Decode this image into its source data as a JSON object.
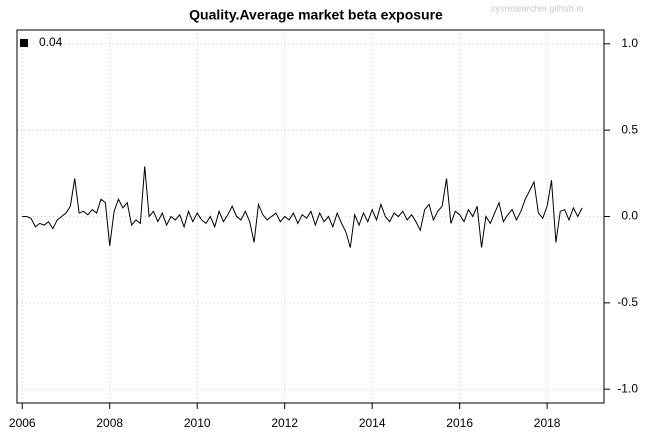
{
  "chart_data": {
    "type": "line",
    "title": "Quality.Average market beta exposure",
    "watermark": "sysresearcher.github.io",
    "x": [
      2006.0,
      2006.1,
      2006.2,
      2006.3,
      2006.4,
      2006.5,
      2006.6,
      2006.7,
      2006.8,
      2006.9,
      2007.0,
      2007.1,
      2007.2,
      2007.3,
      2007.4,
      2007.5,
      2007.6,
      2007.7,
      2007.8,
      2007.9,
      2008.0,
      2008.1,
      2008.2,
      2008.3,
      2008.4,
      2008.5,
      2008.6,
      2008.7,
      2008.8,
      2008.9,
      2009.0,
      2009.1,
      2009.2,
      2009.3,
      2009.4,
      2009.5,
      2009.6,
      2009.7,
      2009.8,
      2009.9,
      2010.0,
      2010.1,
      2010.2,
      2010.3,
      2010.4,
      2010.5,
      2010.6,
      2010.7,
      2010.8,
      2010.9,
      2011.0,
      2011.1,
      2011.2,
      2011.3,
      2011.4,
      2011.5,
      2011.6,
      2011.7,
      2011.8,
      2011.9,
      2012.0,
      2012.1,
      2012.2,
      2012.3,
      2012.4,
      2012.5,
      2012.6,
      2012.7,
      2012.8,
      2012.9,
      2013.0,
      2013.1,
      2013.2,
      2013.3,
      2013.4,
      2013.5,
      2013.6,
      2013.7,
      2013.8,
      2013.9,
      2014.0,
      2014.1,
      2014.2,
      2014.3,
      2014.4,
      2014.5,
      2014.6,
      2014.7,
      2014.8,
      2014.9,
      2015.0,
      2015.1,
      2015.2,
      2015.3,
      2015.4,
      2015.5,
      2015.6,
      2015.7,
      2015.8,
      2015.9,
      2016.0,
      2016.1,
      2016.2,
      2016.3,
      2016.4,
      2016.5,
      2016.6,
      2016.7,
      2016.8,
      2016.9,
      2017.0,
      2017.1,
      2017.2,
      2017.3,
      2017.4,
      2017.5,
      2017.6,
      2017.7,
      2017.8,
      2017.9,
      2018.0,
      2018.1,
      2018.2,
      2018.3,
      2018.4,
      2018.5,
      2018.6,
      2018.7,
      2018.8
    ],
    "series": [
      {
        "name": "0.04",
        "color": "#000000",
        "values": [
          0.0,
          0.0,
          -0.01,
          -0.06,
          -0.04,
          -0.05,
          -0.03,
          -0.07,
          -0.02,
          0.0,
          0.02,
          0.06,
          0.22,
          0.02,
          0.03,
          0.01,
          0.04,
          0.02,
          0.1,
          0.08,
          -0.17,
          0.03,
          0.1,
          0.05,
          0.08,
          -0.05,
          -0.02,
          -0.04,
          0.29,
          0.0,
          0.03,
          -0.03,
          0.02,
          -0.05,
          0.0,
          -0.02,
          0.01,
          -0.06,
          0.03,
          -0.03,
          0.02,
          -0.02,
          -0.04,
          0.0,
          -0.06,
          0.03,
          -0.03,
          0.01,
          0.06,
          0.0,
          -0.02,
          0.03,
          -0.03,
          -0.15,
          0.07,
          0.01,
          -0.02,
          0.0,
          0.02,
          -0.03,
          0.0,
          -0.02,
          0.02,
          -0.04,
          0.01,
          -0.01,
          0.03,
          -0.05,
          0.02,
          -0.03,
          0.0,
          -0.06,
          0.02,
          -0.04,
          -0.09,
          -0.18,
          0.01,
          -0.05,
          0.02,
          -0.03,
          0.04,
          -0.02,
          0.07,
          0.0,
          -0.03,
          0.02,
          0.0,
          0.03,
          -0.02,
          0.01,
          -0.03,
          -0.08,
          0.04,
          0.07,
          -0.02,
          0.03,
          0.06,
          0.22,
          -0.04,
          0.03,
          0.01,
          -0.03,
          0.04,
          0.0,
          0.06,
          -0.18,
          0.0,
          -0.04,
          0.02,
          0.08,
          -0.03,
          0.01,
          0.04,
          -0.02,
          0.03,
          0.1,
          0.15,
          0.2,
          0.02,
          -0.01,
          0.06,
          0.21,
          -0.15,
          0.03,
          0.04,
          -0.02,
          0.05,
          0.0,
          0.05
        ]
      }
    ],
    "xlim": [
      2005.88,
      2019.3
    ],
    "xticks": [
      2006,
      2008,
      2010,
      2012,
      2014,
      2016,
      2018
    ],
    "ylim": [
      -1.08,
      1.08
    ],
    "yticks": [
      {
        "value": 1,
        "label": "1.0"
      },
      0.5,
      {
        "value": 0,
        "label": "0.0"
      },
      -0.5,
      {
        "value": -1,
        "label": "-1.0"
      }
    ],
    "grid": true,
    "legend": "topleft"
  }
}
